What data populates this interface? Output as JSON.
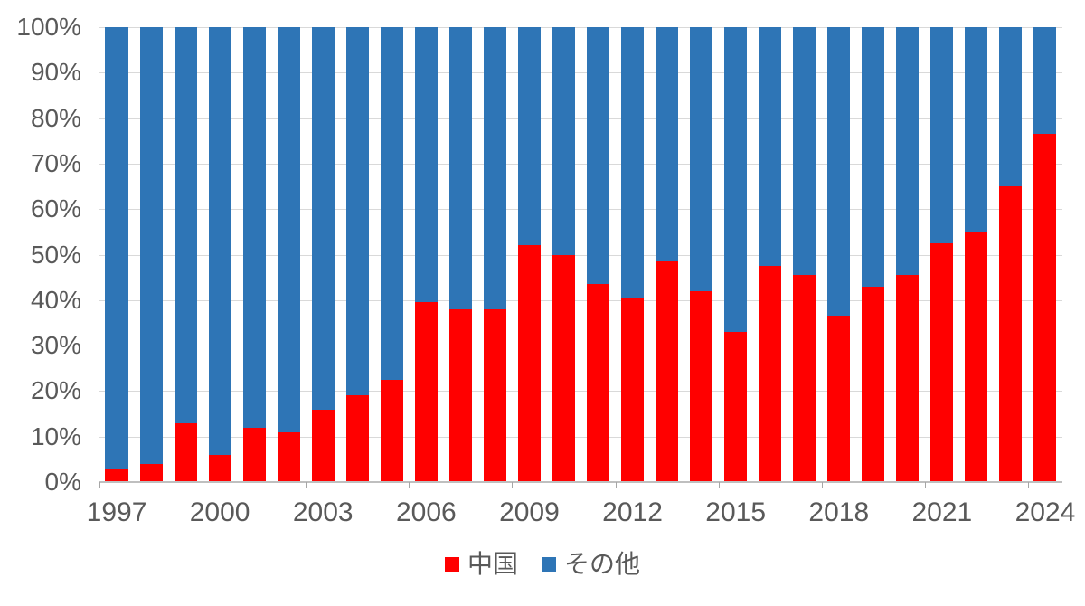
{
  "chart_data": {
    "type": "bar",
    "stacked": true,
    "percent": true,
    "title": "",
    "xlabel": "",
    "ylabel": "",
    "ylim": [
      0,
      100
    ],
    "grid": true,
    "legend_position": "bottom",
    "x_label_interval": 3,
    "categories": [
      "1997",
      "1998",
      "1999",
      "2000",
      "2001",
      "2002",
      "2003",
      "2004",
      "2005",
      "2006",
      "2007",
      "2008",
      "2009",
      "2010",
      "2011",
      "2012",
      "2013",
      "2014",
      "2015",
      "2016",
      "2017",
      "2018",
      "2019",
      "2020",
      "2021",
      "2022",
      "2023",
      "2024"
    ],
    "series": [
      {
        "name": "中国",
        "color": "#ff0000",
        "values": [
          3,
          4,
          13,
          6,
          12,
          11,
          16,
          19,
          22.5,
          39.5,
          38,
          38,
          52,
          50,
          43.5,
          40.5,
          48.5,
          42,
          33,
          47.5,
          45.5,
          36.5,
          43,
          45.5,
          52.5,
          55,
          65,
          76.5
        ]
      },
      {
        "name": "その他",
        "color": "#2e75b6",
        "values": [
          97,
          96,
          87,
          94,
          88,
          89,
          84,
          81,
          77.5,
          60.5,
          62,
          62,
          48,
          50,
          56.5,
          59.5,
          51.5,
          58,
          67,
          52.5,
          54.5,
          63.5,
          57,
          54.5,
          47.5,
          45,
          35,
          23.5
        ]
      }
    ],
    "y_tick_labels": [
      "0%",
      "10%",
      "20%",
      "30%",
      "40%",
      "50%",
      "60%",
      "70%",
      "80%",
      "90%",
      "100%"
    ],
    "x_tick_labels": [
      "1997",
      "2000",
      "2003",
      "2006",
      "2009",
      "2012",
      "2015",
      "2018",
      "2021",
      "2024"
    ]
  },
  "legend": {
    "items": [
      {
        "label": "中国",
        "color": "#ff0000"
      },
      {
        "label": "その他",
        "color": "#2e75b6"
      }
    ]
  },
  "colors": {
    "china": "#ff0000",
    "others": "#2e75b6",
    "gridline": "#d9d9d9",
    "axis": "#bfbfbf",
    "text": "#595959",
    "background": "#ffffff"
  }
}
